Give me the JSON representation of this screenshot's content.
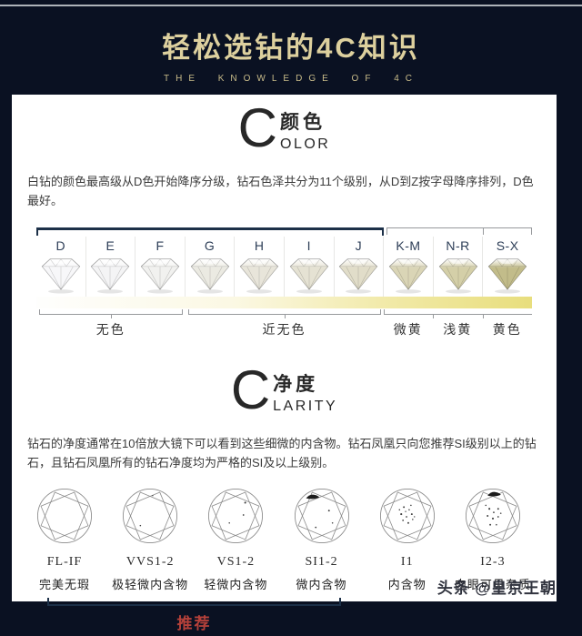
{
  "banner": {
    "title": "轻松选钻的4C知识",
    "subtitle": "THE KNOWLEDGE OF 4C"
  },
  "color_section": {
    "big_letter": "C",
    "title_cn": "颜色",
    "title_en_rest": "OLOR",
    "description": "白钻的颜色最高级从D色开始降序分级，钻石色泽共分为11个级别，从D到Z按字母降序排列，D色最好。",
    "scale": {
      "grades": [
        {
          "label": "D",
          "tint": "#f7f7f9"
        },
        {
          "label": "E",
          "tint": "#f4f4f5"
        },
        {
          "label": "F",
          "tint": "#f1f1ef"
        },
        {
          "label": "G",
          "tint": "#ebeae2"
        },
        {
          "label": "H",
          "tint": "#e8e5da"
        },
        {
          "label": "I",
          "tint": "#e5e2d3"
        },
        {
          "label": "J",
          "tint": "#e1ddc9"
        },
        {
          "label": "K-M",
          "tint": "#dad5b6"
        },
        {
          "label": "N-R",
          "tint": "#d4cfa8"
        },
        {
          "label": "S-X",
          "tint": "#c2bc8a"
        }
      ],
      "groups": [
        {
          "label": "无色",
          "span": 3
        },
        {
          "label": "近无色",
          "span": 4
        },
        {
          "label": "微黄",
          "span": 1
        },
        {
          "label": "浅黄",
          "span": 1
        },
        {
          "label": "黄色",
          "span": 1
        }
      ],
      "primary_bracket_span": 7
    }
  },
  "clarity_section": {
    "big_letter": "C",
    "title_cn": "净度",
    "title_en_rest": "LARITY",
    "description": "钻石的净度通常在10倍放大镜下可以看到这些细微的内含物。钻石凤凰只向您推荐SI级别以上的钻石，且钻石凤凰所有的钻石净度均为严格的SI及以上级别。",
    "grades": [
      {
        "code": "FL-IF",
        "label_cn": "完美无瑕",
        "inclusions": [],
        "blob": null
      },
      {
        "code": "VVS1-2",
        "label_cn": "极轻微内含物",
        "inclusions": [
          [
            21,
            43,
            0.8
          ],
          [
            35,
            9,
            0.7
          ]
        ],
        "blob": null
      },
      {
        "code": "VS1-2",
        "label_cn": "轻微内含物",
        "inclusions": [
          [
            43,
            17,
            1.1
          ],
          [
            41,
            31,
            0.9
          ],
          [
            25,
            40,
            0.8
          ]
        ],
        "blob": null
      },
      {
        "code": "SI1-2",
        "label_cn": "微内含物",
        "inclusions": [
          [
            40,
            26,
            1
          ],
          [
            25,
            45,
            0.9
          ],
          [
            44,
            40,
            0.8
          ]
        ],
        "blob": [
          21,
          10
        ]
      },
      {
        "code": "I1",
        "label_cn": "内含物",
        "inclusions": [
          [
            28,
            22,
            1
          ],
          [
            34,
            25,
            0.8
          ],
          [
            25,
            30,
            1.1
          ],
          [
            31,
            33,
            0.9
          ],
          [
            37,
            30,
            1
          ],
          [
            27,
            37,
            0.9
          ],
          [
            33,
            40,
            1
          ],
          [
            38,
            36,
            0.8
          ],
          [
            30,
            27,
            0.7
          ],
          [
            36,
            20,
            0.8
          ],
          [
            23,
            25,
            0.8
          ],
          [
            40,
            33,
            0.7
          ]
        ],
        "blob": null
      },
      {
        "code": "I2-3",
        "label_cn": "肉眼可见杂质",
        "inclusions": [
          [
            28,
            24,
            1.1
          ],
          [
            33,
            28,
            0.9
          ],
          [
            38,
            24,
            1
          ],
          [
            26,
            32,
            1
          ],
          [
            32,
            35,
            1.1
          ],
          [
            38,
            33,
            0.9
          ],
          [
            29,
            42,
            1
          ],
          [
            36,
            42,
            0.8
          ],
          [
            24,
            20,
            0.8
          ],
          [
            41,
            29,
            0.8
          ]
        ],
        "blob": [
          33,
          7
        ]
      }
    ],
    "recommend_label": "推荐",
    "recommend_span": 4
  },
  "watermark": "头条 @皇京王朝",
  "colors": {
    "navy": "#0a1122",
    "silver": "#aeb3b9",
    "gold": "#ddd09e",
    "gold-dim": "#c9bc8a",
    "accent": "#1c3048",
    "line-gray": "#97999c",
    "red": "#b5413a",
    "watermark": "#30333e"
  }
}
